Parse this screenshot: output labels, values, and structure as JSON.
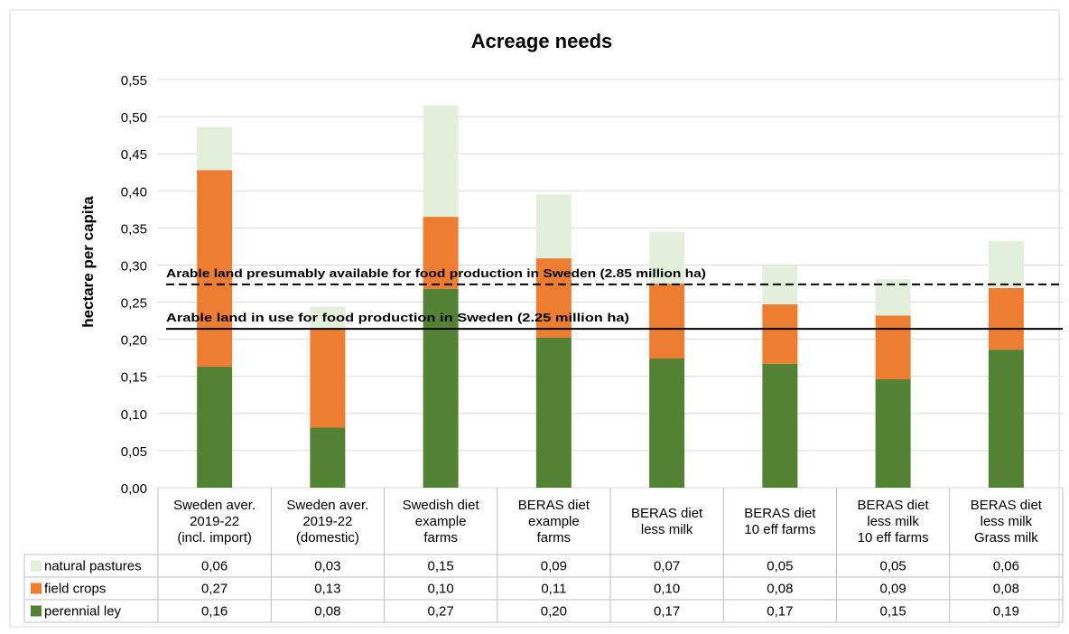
{
  "chart_data": {
    "type": "bar",
    "stacked": true,
    "title": "Acreage needs",
    "ylabel": "hectare per capita",
    "ylim": [
      0,
      0.55
    ],
    "yticks": [
      "0,00",
      "0,05",
      "0,10",
      "0,15",
      "0,20",
      "0,25",
      "0,30",
      "0,35",
      "0,40",
      "0,45",
      "0,50",
      "0,55"
    ],
    "categories": [
      [
        "Sweden aver.",
        "2019-22",
        "(incl. import)"
      ],
      [
        "Sweden aver.",
        "2019-22",
        "(domestic)"
      ],
      [
        "Swedish diet",
        "example",
        "farms"
      ],
      [
        "BERAS diet",
        "example",
        "farms"
      ],
      [
        "BERAS diet",
        "less milk"
      ],
      [
        "BERAS diet",
        "10 eff farms"
      ],
      [
        "BERAS diet",
        "less milk",
        "10 eff farms"
      ],
      [
        "BERAS diet",
        "less milk",
        "Grass milk"
      ]
    ],
    "series": [
      {
        "name": "perennial ley",
        "color": "#548235",
        "values": [
          0.163,
          0.081,
          0.268,
          0.202,
          0.174,
          0.167,
          0.146,
          0.186
        ],
        "labels": [
          "0,16",
          "0,08",
          "0,27",
          "0,20",
          "0,17",
          "0,17",
          "0,15",
          "0,19"
        ]
      },
      {
        "name": "field crops",
        "color": "#ED7D31",
        "values": [
          0.265,
          0.133,
          0.097,
          0.107,
          0.101,
          0.08,
          0.086,
          0.083
        ],
        "labels": [
          "0,27",
          "0,13",
          "0,10",
          "0,11",
          "0,10",
          "0,08",
          "0,09",
          "0,08"
        ]
      },
      {
        "name": "natural pastures",
        "color": "#E2EFDA",
        "values": [
          0.058,
          0.03,
          0.15,
          0.086,
          0.07,
          0.053,
          0.049,
          0.063
        ],
        "labels": [
          "0,06",
          "0,03",
          "0,15",
          "0,09",
          "0,07",
          "0,05",
          "0,05",
          "0,06"
        ]
      }
    ],
    "reference_lines": [
      {
        "label": "Arable land presumably available for food production in Sweden (2.85 million ha)",
        "value": 0.274,
        "style": "dashed"
      },
      {
        "label": "Arable land in use for food production in Sweden (2.25 million ha)",
        "value": 0.214,
        "style": "solid"
      }
    ],
    "grid": true,
    "legend": "data-table"
  }
}
